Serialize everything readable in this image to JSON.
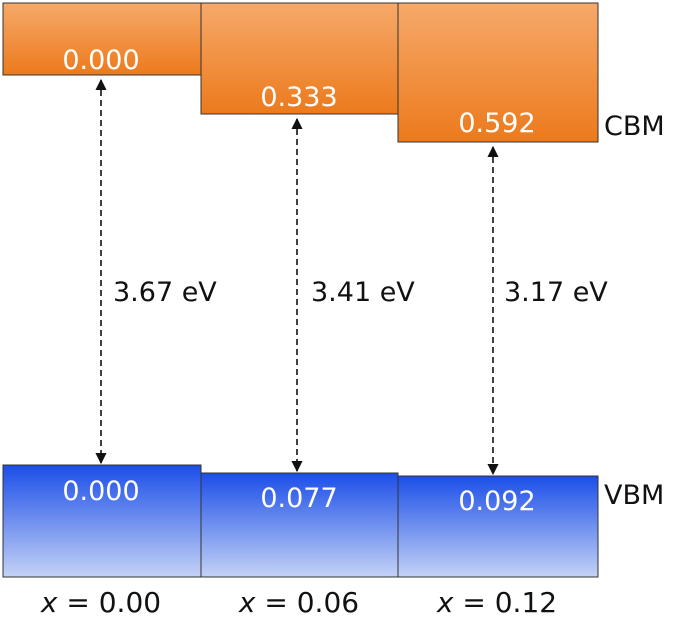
{
  "columns": [
    {
      "x_label_var": "x",
      "x_label_rest": " = 0.00",
      "cbm_offset": "0.000",
      "vbm_offset": "0.000",
      "gap": "3.67 eV"
    },
    {
      "x_label_var": "x",
      "x_label_rest": " = 0.06",
      "cbm_offset": "0.333",
      "vbm_offset": "0.077",
      "gap": "3.41 eV"
    },
    {
      "x_label_var": "x",
      "x_label_rest": " = 0.12",
      "cbm_offset": "0.592",
      "vbm_offset": "0.092",
      "gap": "3.17 eV"
    }
  ],
  "labels": {
    "cbm": "CBM",
    "vbm": "VBM"
  },
  "colors": {
    "cbm_top": "#f6a96a",
    "cbm_bottom": "#ec7a1c",
    "vbm_top": "#1b4ee8",
    "vbm_bottom": "#c4d2f6",
    "outline": "#333333",
    "arrow": "#111111"
  }
}
